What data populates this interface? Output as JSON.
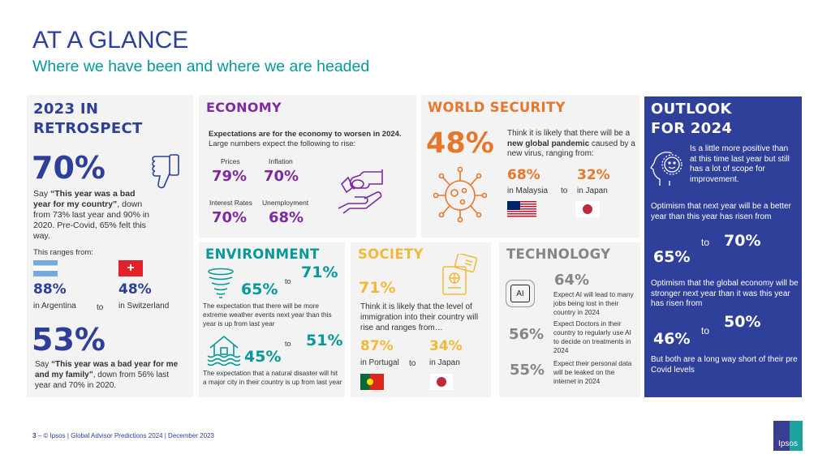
{
  "header": {
    "title": "AT A GLANCE",
    "subtitle": "Where we have been and where we are headed"
  },
  "retrospect": {
    "title_line1": "2023 IN",
    "title_line2": "RETROSPECT",
    "stat1": "70%",
    "stat1_text_pre": "Say ",
    "stat1_text_bold": "“This year was a bad year for my country”",
    "stat1_text_post": ", down from 73% last year and 90% in 2020. Pre-Covid, 65% felt this way.",
    "range_label": "This ranges from:",
    "high_value": "88%",
    "high_country": "in Argentina",
    "to": "to",
    "low_value": "48%",
    "low_country": "in Switzerland",
    "stat2": "53%",
    "stat2_text_pre": "Say ",
    "stat2_text_bold": "“This year was a bad year for me and my family”",
    "stat2_text_post": ", down from 56% last year and 70% in 2020."
  },
  "economy": {
    "title": "ECONOMY",
    "intro_bold": "Expectations are for the economy to worsen in 2024.",
    "intro_rest": " Large numbers expect the following to rise:",
    "items": [
      {
        "label": "Prices",
        "value": "79%"
      },
      {
        "label": "Inflation",
        "value": "70%"
      },
      {
        "label": "Interest Rates",
        "value": "70%"
      },
      {
        "label": "Unemployment",
        "value": "68%"
      }
    ]
  },
  "world_security": {
    "title": "WORLD SECURITY",
    "stat": "48%",
    "text_pre": "Think it is likely that there will be a ",
    "text_bold": "new global pandemic",
    "text_post": " caused by a new virus, ranging from:",
    "high_value": "68%",
    "high_country": "in Malaysia",
    "to": "to",
    "low_value": "32%",
    "low_country": "in Japan"
  },
  "outlook": {
    "title_line1": "OUTLOOK",
    "title_line2": "FOR 2024",
    "intro": "Is a little more positive than at this time last year but still has a lot of scope for improvement.",
    "item1_text": "Optimism that next year will be a better year than this year has risen from",
    "item1_from": "65%",
    "item1_to_word": "to",
    "item1_to": "70%",
    "item2_text": "Optimism that the global economy will be stronger next year than it was this year has risen from",
    "item2_from": "46%",
    "item2_to_word": "to",
    "item2_to": "50%",
    "footer": "But both are a long way short of their pre Covid levels"
  },
  "environment": {
    "title": "ENVIRONMENT",
    "item1_from": "65%",
    "item1_to_word": "to",
    "item1_to": "71%",
    "item1_text": "The expectation that there will be more extreme weather events next year than this year is up from last year",
    "item2_from": "45%",
    "item2_to_word": "to",
    "item2_to": "51%",
    "item2_text": "The expectation that a natural disaster will hit a major city in their country is up from last year"
  },
  "society": {
    "title": "SOCIETY",
    "stat": "71%",
    "text": "Think it is likely that the level of immigration into their country will rise and ranges from…",
    "high_value": "87%",
    "high_country": "in Portugal",
    "to": "to",
    "low_value": "34%",
    "low_country": "in Japan"
  },
  "technology": {
    "title": "TECHNOLOGY",
    "ai_label": "AI",
    "items": [
      {
        "value": "64%",
        "text": "Expect AI will lead to many jobs being lost in their country in 2024"
      },
      {
        "value": "56%",
        "text": "Expect Doctors in their country to regularly use AI to decide on treatments in 2024"
      },
      {
        "value": "55%",
        "text": "Expect their personal data will be leaked on the internet in 2024"
      }
    ]
  },
  "footer": {
    "page": "3",
    "text": "© Ipsos | Global Advisor Predictions 2024 | December 2023",
    "logo": "Ipsos"
  }
}
